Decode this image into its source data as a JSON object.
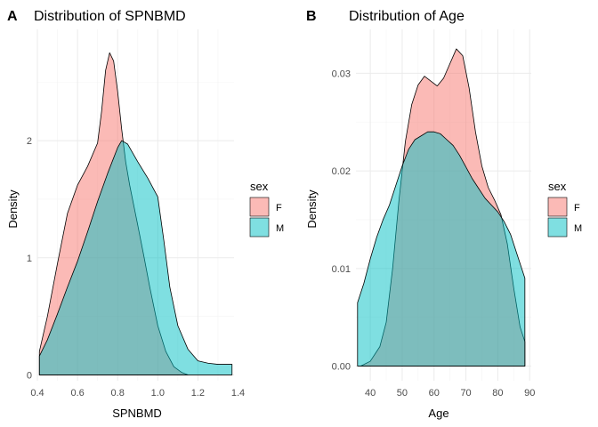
{
  "chart_data": [
    {
      "type": "area",
      "tag": "A",
      "title": "Distribution of SPNBMD",
      "xlabel": "SPNBMD",
      "ylabel": "Density",
      "xlim": [
        0.4,
        1.38
      ],
      "ylim": [
        -0.05,
        2.95
      ],
      "xticks": [
        0.4,
        0.6,
        0.8,
        1.0,
        1.2,
        1.4
      ],
      "xtick_labels": [
        "0.4",
        "0.6",
        "0.8",
        "1.0",
        "1.2",
        "1.4"
      ],
      "yticks": [
        0,
        1,
        2
      ],
      "ytick_labels": [
        "0",
        "1",
        "2"
      ],
      "grid": true,
      "legend": {
        "title": "sex",
        "position": "right",
        "labels": [
          "F",
          "M"
        ]
      },
      "series": [
        {
          "name": "F",
          "color": "#F8766D",
          "x": [
            0.41,
            0.45,
            0.5,
            0.55,
            0.6,
            0.65,
            0.7,
            0.72,
            0.74,
            0.76,
            0.78,
            0.8,
            0.82,
            0.84,
            0.86,
            0.88,
            0.9,
            0.93,
            0.96,
            1.0,
            1.04,
            1.08,
            1.12,
            1.15
          ],
          "y": [
            0.2,
            0.5,
            0.95,
            1.38,
            1.62,
            1.78,
            1.98,
            2.25,
            2.6,
            2.75,
            2.68,
            2.42,
            2.1,
            1.82,
            1.62,
            1.45,
            1.28,
            1.02,
            0.75,
            0.42,
            0.2,
            0.07,
            0.02,
            0.0
          ]
        },
        {
          "name": "M",
          "color": "#00BFC4",
          "x": [
            0.41,
            0.45,
            0.5,
            0.55,
            0.6,
            0.65,
            0.7,
            0.75,
            0.8,
            0.82,
            0.85,
            0.9,
            0.95,
            1.0,
            1.03,
            1.06,
            1.1,
            1.15,
            1.2,
            1.25,
            1.3,
            1.35,
            1.37
          ],
          "y": [
            0.16,
            0.3,
            0.52,
            0.75,
            0.97,
            1.22,
            1.48,
            1.72,
            1.94,
            2.0,
            1.97,
            1.82,
            1.68,
            1.52,
            1.15,
            0.75,
            0.42,
            0.22,
            0.12,
            0.1,
            0.09,
            0.09,
            0.09
          ]
        }
      ]
    },
    {
      "type": "area",
      "tag": "B",
      "title": "Distribution of Age",
      "xlabel": "Age",
      "ylabel": "Density",
      "xlim": [
        35.5,
        90.5
      ],
      "ylim": [
        -0.0015,
        0.0345
      ],
      "xticks": [
        40,
        50,
        60,
        70,
        80,
        90
      ],
      "xtick_labels": [
        "40",
        "50",
        "60",
        "70",
        "80",
        "90"
      ],
      "yticks": [
        0.0,
        0.01,
        0.02,
        0.03
      ],
      "ytick_labels": [
        "0.00",
        "0.01",
        "0.02",
        "0.03"
      ],
      "grid": true,
      "legend": {
        "title": "sex",
        "position": "right",
        "labels": [
          "F",
          "M"
        ]
      },
      "series": [
        {
          "name": "F",
          "color": "#F8766D",
          "x": [
            37,
            40,
            43,
            45,
            47,
            49,
            51,
            53,
            55,
            57,
            59,
            61,
            63,
            65,
            67,
            69,
            71,
            73,
            75,
            77,
            79,
            81,
            83,
            85,
            87,
            88.5
          ],
          "y": [
            0.0,
            0.0005,
            0.002,
            0.0045,
            0.01,
            0.017,
            0.023,
            0.0268,
            0.0288,
            0.0297,
            0.0292,
            0.0287,
            0.0295,
            0.031,
            0.0325,
            0.0318,
            0.0285,
            0.024,
            0.0205,
            0.0183,
            0.017,
            0.0155,
            0.0125,
            0.008,
            0.004,
            0.0025
          ]
        },
        {
          "name": "M",
          "color": "#00BFC4",
          "x": [
            36,
            38,
            40,
            42,
            44,
            46,
            48,
            50,
            52,
            54,
            56,
            58,
            60,
            62,
            64,
            66,
            68,
            70,
            72,
            74,
            76,
            78,
            80,
            82,
            84,
            86,
            88.5
          ],
          "y": [
            0.0065,
            0.0085,
            0.011,
            0.0132,
            0.015,
            0.0165,
            0.0185,
            0.0205,
            0.0222,
            0.0232,
            0.0236,
            0.024,
            0.024,
            0.0238,
            0.0232,
            0.0226,
            0.0216,
            0.0204,
            0.0192,
            0.0182,
            0.0172,
            0.0165,
            0.0158,
            0.0148,
            0.0135,
            0.0115,
            0.009
          ]
        }
      ]
    }
  ]
}
